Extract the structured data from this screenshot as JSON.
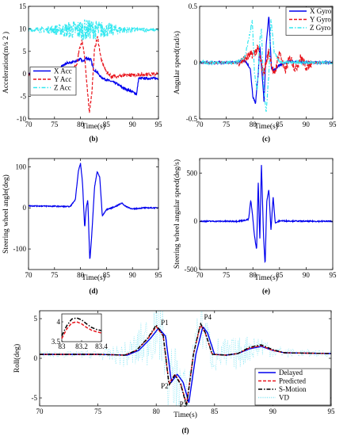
{
  "colors": {
    "blue": "#0000ee",
    "red": "#e8131b",
    "cyan": "#33e8f0",
    "black": "#000000",
    "vd": "#8fe8f5"
  },
  "chart_data": [
    {
      "id": "b",
      "type": "line",
      "caption": "(b)",
      "xlabel": "Time(s)",
      "ylabel": "Acceleration(m/s 2 )",
      "xlim": [
        70,
        95
      ],
      "ylim": [
        -10,
        15
      ],
      "xticks": [
        "70",
        "75",
        "80",
        "85",
        "90",
        "95"
      ],
      "yticks": [
        "-10",
        "-5",
        "0",
        "5",
        "10",
        "15"
      ],
      "grid": false,
      "legend": "bottom-left",
      "series": [
        {
          "name": "X Acc",
          "color": "#0000ee",
          "dash": "solid",
          "noise": 0.25,
          "x": [
            70,
            74,
            75.5,
            76.5,
            77.5,
            79,
            80,
            80.5,
            81,
            82,
            82.5,
            83,
            84,
            85,
            86,
            87,
            88,
            89,
            90,
            90.8,
            91.2,
            95
          ],
          "y": [
            0,
            0.2,
            0.8,
            1.8,
            2.4,
            2.7,
            3.3,
            2.7,
            3.5,
            3.2,
            1.0,
            0.6,
            -0.8,
            -1.3,
            -1.7,
            -2.2,
            -3.0,
            -3.5,
            -4.0,
            -4.5,
            -1.0,
            -1.0
          ]
        },
        {
          "name": "Y Acc",
          "color": "#e8131b",
          "dash": "dash",
          "noise": 0.4,
          "x": [
            70,
            76,
            78,
            79.3,
            79.8,
            80.3,
            80.8,
            81.3,
            81.7,
            82.2,
            82.7,
            83.3,
            84,
            85,
            86,
            88,
            90,
            95
          ],
          "y": [
            0,
            0,
            0.4,
            2.0,
            5.5,
            7.5,
            4.0,
            -3.5,
            -8.5,
            -4.0,
            5.5,
            8.2,
            3.0,
            0.4,
            -0.6,
            -0.5,
            -0.2,
            0
          ]
        },
        {
          "name": "Z Acc",
          "color": "#33e8f0",
          "dash": "dashdot",
          "noise": 0.9,
          "x": [
            70,
            74,
            78,
            80,
            82,
            84,
            86,
            88,
            90,
            95
          ],
          "y": [
            9.8,
            9.8,
            9.8,
            9.8,
            9.8,
            9.8,
            9.8,
            9.8,
            9.8,
            9.8
          ]
        }
      ]
    },
    {
      "id": "c",
      "type": "line",
      "caption": "(c)",
      "xlabel": "Time(s)",
      "ylabel": "Angular speed(rad/s)",
      "xlim": [
        70,
        95
      ],
      "ylim": [
        -0.5,
        0.5
      ],
      "xticks": [
        "70",
        "75",
        "80",
        "85",
        "90",
        "95"
      ],
      "yticks": [
        "-0.5",
        "0",
        "0.5"
      ],
      "grid": false,
      "legend": "top-right",
      "series": [
        {
          "name": "X Gyro",
          "color": "#0000ee",
          "dash": "solid",
          "noise": 0.01,
          "x": [
            70,
            77,
            78.5,
            79.5,
            80,
            80.5,
            81,
            81.3,
            81.7,
            82.1,
            82.5,
            83,
            83.5,
            84,
            85,
            87,
            90,
            95
          ],
          "y": [
            0,
            0,
            0.02,
            -0.05,
            -0.3,
            -0.36,
            -0.1,
            0.15,
            -0.08,
            -0.35,
            0.15,
            0.42,
            -0.05,
            -0.07,
            -0.02,
            0.01,
            0,
            0
          ]
        },
        {
          "name": "Y Gyro",
          "color": "#e8131b",
          "dash": "dash",
          "noise": 0.04,
          "x": [
            70,
            77,
            78,
            79,
            80,
            81,
            82,
            83,
            84,
            85,
            86,
            87,
            88,
            89,
            90,
            91,
            95
          ],
          "y": [
            0,
            0,
            0.02,
            0.05,
            0.08,
            0.12,
            -0.1,
            0.1,
            -0.12,
            0.1,
            -0.08,
            0.05,
            -0.06,
            0.05,
            -0.04,
            0,
            0
          ]
        },
        {
          "name": "Z Gyro",
          "color": "#33e8f0",
          "dash": "dashdot",
          "noise": 0.015,
          "x": [
            70,
            77,
            78.5,
            79.4,
            79.9,
            80.3,
            80.8,
            81.3,
            81.6,
            82,
            82.5,
            83,
            83.4,
            84,
            85,
            90,
            95
          ],
          "y": [
            0,
            0,
            0.05,
            0.25,
            0.38,
            -0.1,
            -0.25,
            0.2,
            0.3,
            -0.2,
            -0.45,
            -0.1,
            0.38,
            0.1,
            0,
            0,
            0
          ]
        }
      ]
    },
    {
      "id": "d",
      "type": "line",
      "caption": "(d)",
      "xlabel": "Time(s)",
      "ylabel": "Steering wheel angle(deg)",
      "xlim": [
        70,
        95
      ],
      "ylim": [
        -150,
        120
      ],
      "xticks": [
        "70",
        "75",
        "80",
        "85",
        "90",
        "95"
      ],
      "yticks": [
        "-100",
        "0",
        "100"
      ],
      "grid": false,
      "legend": "none",
      "series": [
        {
          "name": "",
          "color": "#0000ee",
          "dash": "solid",
          "noise": 1.2,
          "x": [
            70,
            75,
            78,
            79,
            79.6,
            80,
            80.4,
            80.8,
            81.1,
            81.4,
            81.8,
            82.2,
            82.7,
            83.2,
            83.7,
            84.2,
            85,
            86,
            87,
            88,
            88.5,
            90,
            92,
            95
          ],
          "y": [
            5,
            4,
            3,
            20,
            90,
            108,
            60,
            -50,
            0,
            20,
            -128,
            -60,
            50,
            88,
            75,
            -20,
            -4,
            0,
            5,
            12,
            5,
            -3,
            0,
            0
          ]
        }
      ]
    },
    {
      "id": "e",
      "type": "line",
      "caption": "(e)",
      "xlabel": "Time(s)",
      "ylabel": "Steering wheel angular speed(deg/s)",
      "xlim": [
        70,
        95
      ],
      "ylim": [
        -500,
        650
      ],
      "xticks": [
        "70",
        "75",
        "80",
        "85",
        "90",
        "95"
      ],
      "yticks": [
        "-500",
        "0",
        "500"
      ],
      "grid": false,
      "legend": "none",
      "series": [
        {
          "name": "",
          "color": "#0000ee",
          "dash": "solid",
          "noise": 6,
          "x": [
            70,
            77,
            78.5,
            79.2,
            79.6,
            79.9,
            80.3,
            80.7,
            81,
            81.3,
            81.6,
            82,
            82.3,
            82.6,
            83,
            83.4,
            83.8,
            84.2,
            85,
            90,
            95
          ],
          "y": [
            0,
            0,
            10,
            20,
            220,
            80,
            -150,
            -300,
            420,
            -200,
            600,
            -150,
            -460,
            200,
            330,
            -100,
            260,
            -20,
            5,
            0,
            0
          ]
        }
      ]
    },
    {
      "id": "f",
      "type": "line",
      "caption": "(f)",
      "xlabel": "Time(s)",
      "ylabel": "Roll(deg)",
      "xlim": [
        70,
        95
      ],
      "ylim": [
        -6,
        6
      ],
      "xticks": [
        "70",
        "75",
        "80",
        "85",
        "90",
        "95"
      ],
      "yticks": [
        "-5",
        "0",
        "5"
      ],
      "grid": false,
      "legend": "bottom-right",
      "annotations": [
        {
          "text": "P1",
          "x": 80.4,
          "y": 4.2
        },
        {
          "text": "P2",
          "x": 80.4,
          "y": -3.8
        },
        {
          "text": "P3",
          "x": 82.0,
          "y": -6.1
        },
        {
          "text": "P4",
          "x": 84.1,
          "y": 4.9
        }
      ],
      "series": [
        {
          "name": "Delayed",
          "color": "#0000ee",
          "dash": "solid",
          "width": 1.4,
          "noise": 0,
          "x": [
            70,
            75,
            77.5,
            78.5,
            79.5,
            80.2,
            80.8,
            81.3,
            81.8,
            82.3,
            82.8,
            83.4,
            84,
            84.4,
            85,
            86,
            87,
            88,
            89,
            90,
            91,
            95
          ],
          "y": [
            0.5,
            0.5,
            0.4,
            1.0,
            2.5,
            3.8,
            2.8,
            -3.0,
            -2.0,
            -3.0,
            -5.6,
            0.5,
            4.0,
            3.2,
            0.5,
            0.4,
            0.6,
            1.2,
            1.5,
            1.0,
            0.7,
            0.6
          ]
        },
        {
          "name": "Predicted",
          "color": "#e8131b",
          "dash": "dash",
          "width": 1.4,
          "noise": 0,
          "x": [
            70,
            75,
            77.3,
            78.3,
            79.3,
            80.0,
            80.6,
            81.1,
            81.6,
            82.1,
            82.6,
            83.2,
            83.8,
            84.2,
            84.8,
            86,
            87,
            88,
            89,
            90,
            91,
            95
          ],
          "y": [
            0.5,
            0.5,
            0.4,
            1.0,
            2.5,
            4.0,
            2.8,
            -3.2,
            -2.0,
            -3.2,
            -5.8,
            0.6,
            4.2,
            3.2,
            0.5,
            0.4,
            0.6,
            1.3,
            1.6,
            1.0,
            0.7,
            0.6
          ]
        },
        {
          "name": "S-Motion",
          "color": "#000000",
          "dash": "dashdot",
          "width": 1.4,
          "noise": 0,
          "x": [
            70,
            75,
            77.3,
            78.3,
            79.3,
            80.0,
            80.6,
            81.1,
            81.6,
            82.1,
            82.6,
            83.2,
            83.8,
            84.2,
            84.8,
            86,
            87,
            88,
            89,
            90,
            91,
            95
          ],
          "y": [
            0.5,
            0.5,
            0.4,
            1.0,
            2.6,
            4.2,
            2.9,
            -3.4,
            -2.1,
            -3.3,
            -6.0,
            0.6,
            4.4,
            3.3,
            0.5,
            0.4,
            0.6,
            1.4,
            1.7,
            1.1,
            0.7,
            0.6
          ]
        },
        {
          "name": "VD",
          "color": "#8fe8f5",
          "dash": "dot",
          "width": 0.7,
          "noise": 2.8,
          "x": [
            70,
            75,
            77.3,
            78.3,
            79.3,
            80.0,
            80.6,
            81.1,
            81.6,
            82.1,
            82.6,
            83.2,
            83.8,
            84.2,
            84.8,
            86,
            87,
            88,
            89,
            90,
            91,
            95
          ],
          "y": [
            0.5,
            0.5,
            0.4,
            1.0,
            2.5,
            4.0,
            2.8,
            -3.2,
            -2.0,
            -3.2,
            -5.8,
            0.6,
            4.2,
            3.2,
            0.5,
            0.4,
            0.6,
            1.3,
            1.6,
            1.0,
            0.7,
            0.6
          ]
        }
      ],
      "inset": {
        "xlim": [
          83,
          83.4
        ],
        "ylim": [
          3.5,
          4.2
        ],
        "xticks": [
          "83",
          "83.2",
          "83.4"
        ],
        "yticks": [
          "3.5",
          "4"
        ],
        "series": [
          {
            "name": "Predicted",
            "x": [
              83.0,
              83.05,
              83.1,
              83.15,
              83.2,
              83.25,
              83.3,
              83.35,
              83.4
            ],
            "y": [
              3.58,
              3.82,
              3.97,
              4.0,
              3.95,
              3.86,
              3.79,
              3.75,
              3.72
            ]
          },
          {
            "name": "S-Motion",
            "x": [
              83.0,
              83.05,
              83.1,
              83.15,
              83.2,
              83.25,
              83.3,
              83.35,
              83.4
            ],
            "y": [
              3.65,
              3.9,
              4.07,
              4.1,
              4.05,
              3.95,
              3.86,
              3.81,
              3.78
            ]
          }
        ]
      }
    }
  ]
}
